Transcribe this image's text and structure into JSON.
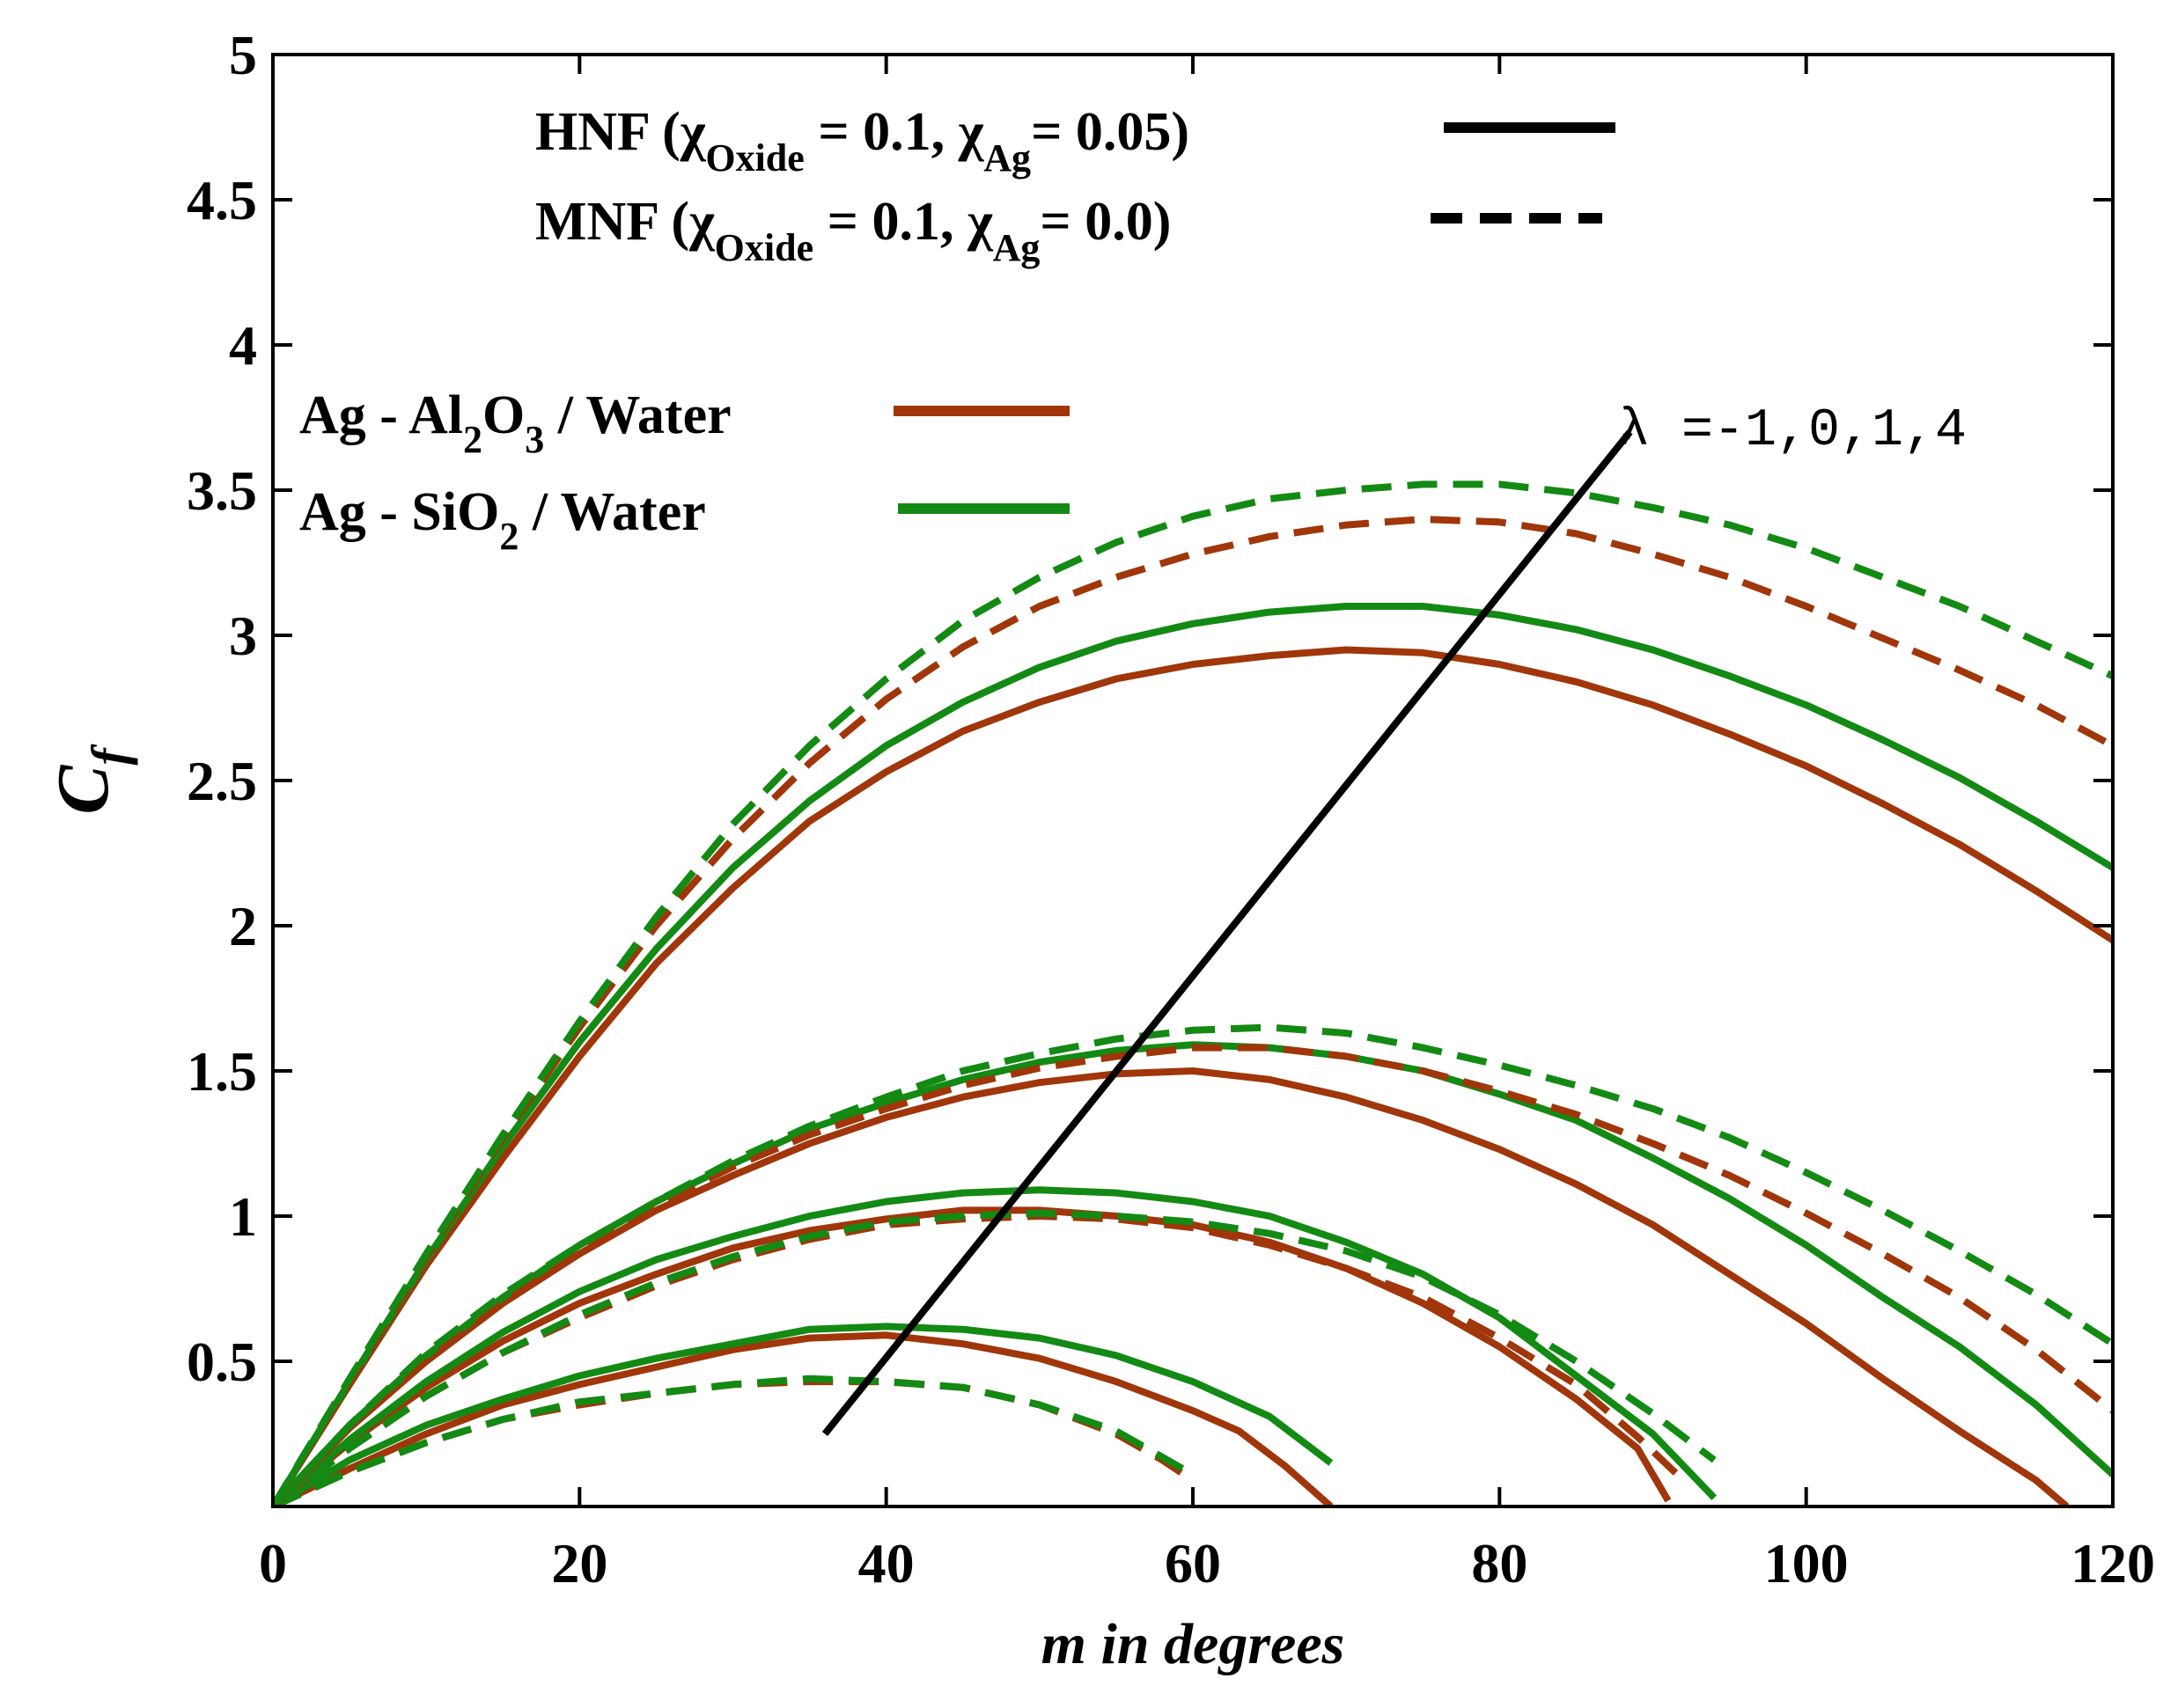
{
  "chart_data": {
    "type": "line",
    "xlabel": "m in degrees",
    "ylabel_main": "C",
    "ylabel_sub": "f",
    "xlim": [
      0,
      120
    ],
    "ylim": [
      0,
      5
    ],
    "xticks": [
      0,
      20,
      40,
      60,
      80,
      100,
      120
    ],
    "yticks": [
      0.5,
      1,
      1.5,
      2,
      2.5,
      3,
      3.5,
      4,
      4.5,
      5
    ],
    "ytick_labels": [
      "0.5",
      "1",
      "1.5",
      "2",
      "2.5",
      "3",
      "3.5",
      "4",
      "4.5",
      "5"
    ],
    "xtick_labels": [
      "0",
      "20",
      "40",
      "60",
      "80",
      "100",
      "120"
    ],
    "colors": {
      "al2o3": "#a0360a",
      "sio2": "#138a13",
      "axis": "#000000"
    },
    "legend_styles": {
      "hnf": {
        "prefix": "HNF (χ",
        "sub1": "Oxide",
        "mid": " = 0.1, χ",
        "sub2": "Ag",
        "suffix": "= 0.05)"
      },
      "mnf": {
        "prefix": "MNF (χ",
        "sub1": "Oxide",
        "mid": " = 0.1, χ",
        "sub2": "Ag",
        "suffix": "= 0.0)"
      }
    },
    "legend_fluids": {
      "al2o3": {
        "pre": "Ag - Al",
        "sub1": "2",
        "mid": "O",
        "sub2": "3",
        "post": " / Water"
      },
      "sio2": {
        "pre": "Ag - SiO",
        "sub1": "2",
        "post": " / Water"
      }
    },
    "annotation": {
      "text": "λ =-1,0,1,4",
      "arrow_from": [
        36,
        0.25
      ],
      "arrow_to": [
        88.5,
        3.7
      ]
    },
    "series": [
      {
        "name": "Ag-Al2O3 HNF λ=-1",
        "fluid": "al2o3",
        "style": "solid",
        "x": [
          0,
          5,
          10,
          15,
          20,
          25,
          30,
          35,
          40,
          45,
          50,
          55,
          60,
          63,
          66,
          69
        ],
        "y": [
          0,
          0.13,
          0.25,
          0.35,
          0.42,
          0.48,
          0.54,
          0.58,
          0.59,
          0.56,
          0.51,
          0.43,
          0.33,
          0.26,
          0.14,
          0
        ]
      },
      {
        "name": "Ag-SiO2 HNF λ=-1",
        "fluid": "sio2",
        "style": "solid",
        "x": [
          0,
          5,
          10,
          15,
          20,
          25,
          30,
          35,
          40,
          45,
          50,
          55,
          60,
          65,
          69
        ],
        "y": [
          0,
          0.16,
          0.28,
          0.37,
          0.45,
          0.51,
          0.56,
          0.61,
          0.62,
          0.61,
          0.58,
          0.52,
          0.43,
          0.31,
          0.15
        ]
      },
      {
        "name": "Ag-Al2O3 MNF λ=-1",
        "fluid": "al2o3",
        "style": "dash",
        "x": [
          0,
          5,
          10,
          15,
          20,
          25,
          30,
          35,
          40,
          45,
          50,
          55,
          58,
          60
        ],
        "y": [
          0,
          0.12,
          0.22,
          0.3,
          0.35,
          0.39,
          0.42,
          0.43,
          0.43,
          0.41,
          0.35,
          0.25,
          0.16,
          0.09
        ]
      },
      {
        "name": "Ag-SiO2 MNF λ=-1",
        "fluid": "sio2",
        "style": "dash",
        "x": [
          0,
          5,
          10,
          15,
          20,
          25,
          30,
          35,
          40,
          45,
          50,
          55,
          58,
          60
        ],
        "y": [
          0,
          0.12,
          0.22,
          0.3,
          0.36,
          0.39,
          0.42,
          0.44,
          0.43,
          0.41,
          0.35,
          0.26,
          0.17,
          0.11
        ]
      },
      {
        "name": "Ag-Al2O3 HNF λ=0",
        "fluid": "al2o3",
        "style": "solid",
        "x": [
          0,
          5,
          10,
          15,
          20,
          25,
          30,
          35,
          40,
          45,
          50,
          55,
          60,
          65,
          70,
          75,
          80,
          85,
          89,
          91
        ],
        "y": [
          0,
          0.22,
          0.41,
          0.57,
          0.7,
          0.8,
          0.89,
          0.95,
          0.99,
          1.02,
          1.02,
          1.0,
          0.97,
          0.91,
          0.82,
          0.7,
          0.55,
          0.37,
          0.2,
          0.02
        ]
      },
      {
        "name": "Ag-SiO2 HNF λ=0",
        "fluid": "sio2",
        "style": "solid",
        "x": [
          0,
          5,
          10,
          15,
          20,
          25,
          30,
          35,
          40,
          45,
          50,
          55,
          60,
          65,
          70,
          75,
          80,
          85,
          90,
          94
        ],
        "y": [
          0,
          0.23,
          0.43,
          0.6,
          0.74,
          0.85,
          0.93,
          1.0,
          1.05,
          1.08,
          1.09,
          1.08,
          1.05,
          1.0,
          0.91,
          0.8,
          0.65,
          0.45,
          0.25,
          0.03
        ]
      },
      {
        "name": "Ag-Al2O3 MNF λ=0",
        "fluid": "al2o3",
        "style": "dash",
        "x": [
          0,
          5,
          10,
          15,
          20,
          25,
          30,
          35,
          40,
          45,
          50,
          55,
          60,
          65,
          70,
          75,
          80,
          85,
          89,
          92
        ],
        "y": [
          0,
          0.2,
          0.38,
          0.53,
          0.65,
          0.76,
          0.85,
          0.92,
          0.97,
          0.99,
          1.0,
          0.99,
          0.96,
          0.9,
          0.82,
          0.72,
          0.58,
          0.42,
          0.24,
          0.09
        ]
      },
      {
        "name": "Ag-SiO2 MNF λ=0",
        "fluid": "sio2",
        "style": "dash",
        "x": [
          0,
          5,
          10,
          15,
          20,
          25,
          30,
          35,
          40,
          45,
          50,
          55,
          60,
          65,
          70,
          75,
          80,
          85,
          90,
          94
        ],
        "y": [
          0,
          0.2,
          0.38,
          0.53,
          0.66,
          0.77,
          0.86,
          0.93,
          0.98,
          1.0,
          1.01,
          1.0,
          0.98,
          0.94,
          0.88,
          0.79,
          0.66,
          0.5,
          0.32,
          0.16
        ]
      },
      {
        "name": "Ag-Al2O3 HNF λ=1",
        "fluid": "al2o3",
        "style": "solid",
        "x": [
          0,
          5,
          10,
          15,
          20,
          25,
          30,
          35,
          40,
          45,
          50,
          55,
          60,
          65,
          70,
          75,
          80,
          85,
          90,
          95,
          100,
          105,
          110,
          115,
          117
        ],
        "y": [
          0,
          0.27,
          0.5,
          0.7,
          0.87,
          1.02,
          1.14,
          1.25,
          1.34,
          1.41,
          1.46,
          1.49,
          1.5,
          1.47,
          1.41,
          1.33,
          1.23,
          1.11,
          0.97,
          0.8,
          0.63,
          0.44,
          0.26,
          0.09,
          0
        ]
      },
      {
        "name": "Ag-SiO2 HNF λ=1",
        "fluid": "sio2",
        "style": "solid",
        "x": [
          0,
          5,
          10,
          15,
          20,
          25,
          30,
          35,
          40,
          45,
          50,
          55,
          60,
          65,
          70,
          75,
          80,
          85,
          90,
          95,
          100,
          105,
          110,
          115,
          120
        ],
        "y": [
          0,
          0.28,
          0.52,
          0.72,
          0.9,
          1.05,
          1.18,
          1.3,
          1.39,
          1.47,
          1.53,
          1.57,
          1.59,
          1.58,
          1.55,
          1.5,
          1.42,
          1.33,
          1.2,
          1.06,
          0.9,
          0.72,
          0.55,
          0.35,
          0.11
        ]
      },
      {
        "name": "Ag-Al2O3 MNF λ=1",
        "fluid": "al2o3",
        "style": "dash",
        "x": [
          0,
          5,
          10,
          15,
          20,
          25,
          30,
          35,
          40,
          45,
          50,
          55,
          60,
          65,
          70,
          75,
          80,
          85,
          90,
          95,
          100,
          105,
          110,
          115,
          120
        ],
        "y": [
          0,
          0.28,
          0.52,
          0.72,
          0.89,
          1.04,
          1.17,
          1.28,
          1.37,
          1.45,
          1.51,
          1.55,
          1.58,
          1.58,
          1.55,
          1.5,
          1.43,
          1.35,
          1.25,
          1.14,
          1.01,
          0.87,
          0.72,
          0.54,
          0.33
        ]
      },
      {
        "name": "Ag-SiO2 MNF λ=1",
        "fluid": "sio2",
        "style": "dash",
        "x": [
          0,
          5,
          10,
          15,
          20,
          25,
          30,
          35,
          40,
          45,
          50,
          55,
          60,
          65,
          70,
          75,
          80,
          85,
          90,
          95,
          100,
          105,
          110,
          115,
          120
        ],
        "y": [
          0,
          0.28,
          0.53,
          0.73,
          0.9,
          1.05,
          1.19,
          1.31,
          1.41,
          1.5,
          1.56,
          1.61,
          1.64,
          1.65,
          1.63,
          1.58,
          1.52,
          1.45,
          1.37,
          1.27,
          1.15,
          1.02,
          0.88,
          0.73,
          0.56
        ]
      },
      {
        "name": "Ag-Al2O3 HNF λ=4",
        "fluid": "al2o3",
        "style": "solid",
        "x": [
          0,
          5,
          10,
          15,
          20,
          25,
          30,
          35,
          40,
          45,
          50,
          55,
          60,
          65,
          70,
          75,
          80,
          85,
          90,
          95,
          100,
          105,
          110,
          115,
          120
        ],
        "y": [
          0,
          0.42,
          0.83,
          1.2,
          1.55,
          1.87,
          2.13,
          2.36,
          2.53,
          2.67,
          2.77,
          2.85,
          2.9,
          2.93,
          2.95,
          2.94,
          2.9,
          2.84,
          2.76,
          2.66,
          2.55,
          2.42,
          2.28,
          2.12,
          1.95
        ]
      },
      {
        "name": "Ag-SiO2 HNF λ=4",
        "fluid": "sio2",
        "style": "solid",
        "x": [
          0,
          5,
          10,
          15,
          20,
          25,
          30,
          35,
          40,
          45,
          50,
          55,
          60,
          65,
          70,
          75,
          80,
          85,
          90,
          95,
          100,
          105,
          110,
          115,
          120
        ],
        "y": [
          0,
          0.43,
          0.85,
          1.24,
          1.6,
          1.92,
          2.2,
          2.43,
          2.62,
          2.77,
          2.89,
          2.98,
          3.04,
          3.08,
          3.1,
          3.1,
          3.07,
          3.02,
          2.95,
          2.86,
          2.76,
          2.64,
          2.51,
          2.36,
          2.2
        ]
      },
      {
        "name": "Ag-Al2O3 MNF λ=4",
        "fluid": "al2o3",
        "style": "dash",
        "x": [
          0,
          5,
          10,
          15,
          20,
          25,
          30,
          35,
          40,
          45,
          50,
          55,
          60,
          65,
          70,
          75,
          80,
          85,
          90,
          95,
          100,
          105,
          110,
          115,
          120
        ],
        "y": [
          0,
          0.43,
          0.86,
          1.27,
          1.65,
          2.0,
          2.3,
          2.56,
          2.78,
          2.96,
          3.1,
          3.2,
          3.28,
          3.34,
          3.38,
          3.4,
          3.39,
          3.35,
          3.28,
          3.2,
          3.1,
          2.99,
          2.88,
          2.76,
          2.62
        ]
      },
      {
        "name": "Ag-SiO2 MNF λ=4",
        "fluid": "sio2",
        "style": "dash",
        "x": [
          0,
          5,
          10,
          15,
          20,
          25,
          30,
          35,
          40,
          45,
          50,
          55,
          60,
          65,
          70,
          75,
          80,
          85,
          90,
          95,
          100,
          105,
          110,
          115,
          120
        ],
        "y": [
          0,
          0.44,
          0.87,
          1.28,
          1.67,
          2.03,
          2.35,
          2.62,
          2.85,
          3.05,
          3.2,
          3.32,
          3.41,
          3.47,
          3.5,
          3.52,
          3.52,
          3.49,
          3.44,
          3.38,
          3.3,
          3.2,
          3.1,
          2.98,
          2.86
        ]
      }
    ]
  }
}
